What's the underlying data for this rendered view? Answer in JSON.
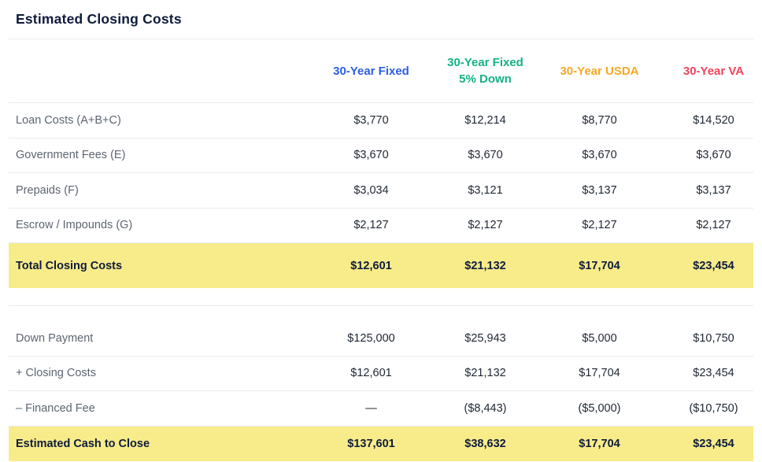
{
  "title": "Estimated Closing Costs",
  "colors": {
    "fixed_blue": "#2b5fe3",
    "fixed_5_down_green": "#13b284",
    "usda_orange": "#f9a826",
    "va_red": "#f1435a",
    "highlight_yellow": "#f8ec8a"
  },
  "columns": [
    {
      "line1": "30-Year Fixed",
      "line2": "",
      "color": "#2b5fe3"
    },
    {
      "line1": "30-Year Fixed",
      "line2": "5% Down",
      "color": "#13b284"
    },
    {
      "line1": "30-Year USDA",
      "line2": "",
      "color": "#f9a826"
    },
    {
      "line1": "30-Year VA",
      "line2": "",
      "color": "#f1435a"
    }
  ],
  "closing_costs": {
    "rows": [
      {
        "label": "Loan Costs (A+B+C)",
        "values": [
          "$3,770",
          "$12,214",
          "$8,770",
          "$14,520"
        ]
      },
      {
        "label": "Government Fees (E)",
        "values": [
          "$3,670",
          "$3,670",
          "$3,670",
          "$3,670"
        ]
      },
      {
        "label": "Prepaids (F)",
        "values": [
          "$3,034",
          "$3,121",
          "$3,137",
          "$3,137"
        ]
      },
      {
        "label": "Escrow / Impounds (G)",
        "values": [
          "$2,127",
          "$2,127",
          "$2,127",
          "$2,127"
        ]
      }
    ],
    "total": {
      "label": "Total Closing Costs",
      "values": [
        "$12,601",
        "$21,132",
        "$17,704",
        "$23,454"
      ]
    }
  },
  "cash_to_close": {
    "rows": [
      {
        "label": "Down Payment",
        "values": [
          "$125,000",
          "$25,943",
          "$5,000",
          "$10,750"
        ]
      },
      {
        "label": "+ Closing Costs",
        "values": [
          "$12,601",
          "$21,132",
          "$17,704",
          "$23,454"
        ]
      },
      {
        "label": "– Financed Fee",
        "values": [
          "—",
          "($8,443)",
          "($5,000)",
          "($10,750)"
        ]
      }
    ],
    "total": {
      "label": "Estimated Cash to Close",
      "values": [
        "$137,601",
        "$38,632",
        "$17,704",
        "$23,454"
      ]
    }
  }
}
